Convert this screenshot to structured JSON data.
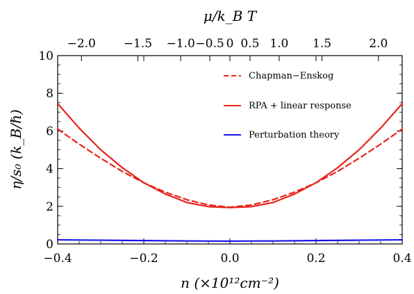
{
  "chart_data": {
    "type": "line",
    "xlabel": "n (×10¹²cm⁻²)",
    "ylabel": "η/s₀ (k_B/ℏ)",
    "top_xlabel": "μ/k_B T",
    "xlim": [
      -0.4,
      0.4
    ],
    "ylim": [
      0,
      10
    ],
    "x_ticks": [
      "−0.4",
      "−0.2",
      "0.0",
      "0.2",
      "0.4"
    ],
    "y_ticks": [
      "0",
      "2",
      "4",
      "6",
      "8",
      "10"
    ],
    "top_ticks": [
      {
        "label": "−2.0",
        "mu": -2.0
      },
      {
        "label": "−1.5",
        "mu": -1.5
      },
      {
        "label": "−1.0",
        "mu": -1.0
      },
      {
        "label": "−0.5",
        "mu": -0.5
      },
      {
        "label": "0",
        "mu": 0.0
      },
      {
        "label": "0.5",
        "mu": 0.5
      },
      {
        "label": "1.0",
        "mu": 1.0
      },
      {
        "label": "1.5",
        "mu": 1.5
      },
      {
        "label": "2.0",
        "mu": 2.0
      }
    ],
    "top_tick_positions_n": [
      -0.3448,
      -0.2138,
      -0.1143,
      -0.0467,
      0.0,
      0.0467,
      0.1143,
      0.2138,
      0.3448
    ],
    "series": [
      {
        "name": "Chapman−Enskog",
        "color": "#e8231a",
        "dash": "dashed",
        "x": [
          -0.4,
          -0.35,
          -0.3,
          -0.25,
          -0.2,
          -0.15,
          -0.1,
          -0.05,
          0.0,
          0.05,
          0.1,
          0.15,
          0.2,
          0.25,
          0.3,
          0.35,
          0.4
        ],
        "y": [
          6.1,
          5.3,
          4.55,
          3.85,
          3.25,
          2.75,
          2.35,
          2.07,
          1.95,
          2.07,
          2.35,
          2.75,
          3.25,
          3.85,
          4.55,
          5.3,
          6.1
        ]
      },
      {
        "name": "RPA + linear response",
        "color": "#e8231a",
        "dash": "solid",
        "x": [
          -0.4,
          -0.35,
          -0.3,
          -0.25,
          -0.2,
          -0.15,
          -0.1,
          -0.05,
          0.0,
          0.05,
          0.1,
          0.15,
          0.2,
          0.25,
          0.3,
          0.35,
          0.4
        ],
        "y": [
          7.45,
          6.15,
          5.0,
          4.05,
          3.25,
          2.65,
          2.2,
          1.98,
          1.93,
          1.98,
          2.2,
          2.65,
          3.25,
          4.05,
          5.0,
          6.15,
          7.45
        ]
      },
      {
        "name": "Perturbation theory",
        "color": "#1414e6",
        "dash": "solid",
        "x": [
          -0.4,
          -0.3,
          -0.2,
          -0.1,
          0.0,
          0.1,
          0.2,
          0.3,
          0.4
        ],
        "y": [
          0.22,
          0.2,
          0.18,
          0.16,
          0.15,
          0.16,
          0.18,
          0.2,
          0.22
        ]
      }
    ],
    "legend_position": "top-right",
    "grid": false
  }
}
